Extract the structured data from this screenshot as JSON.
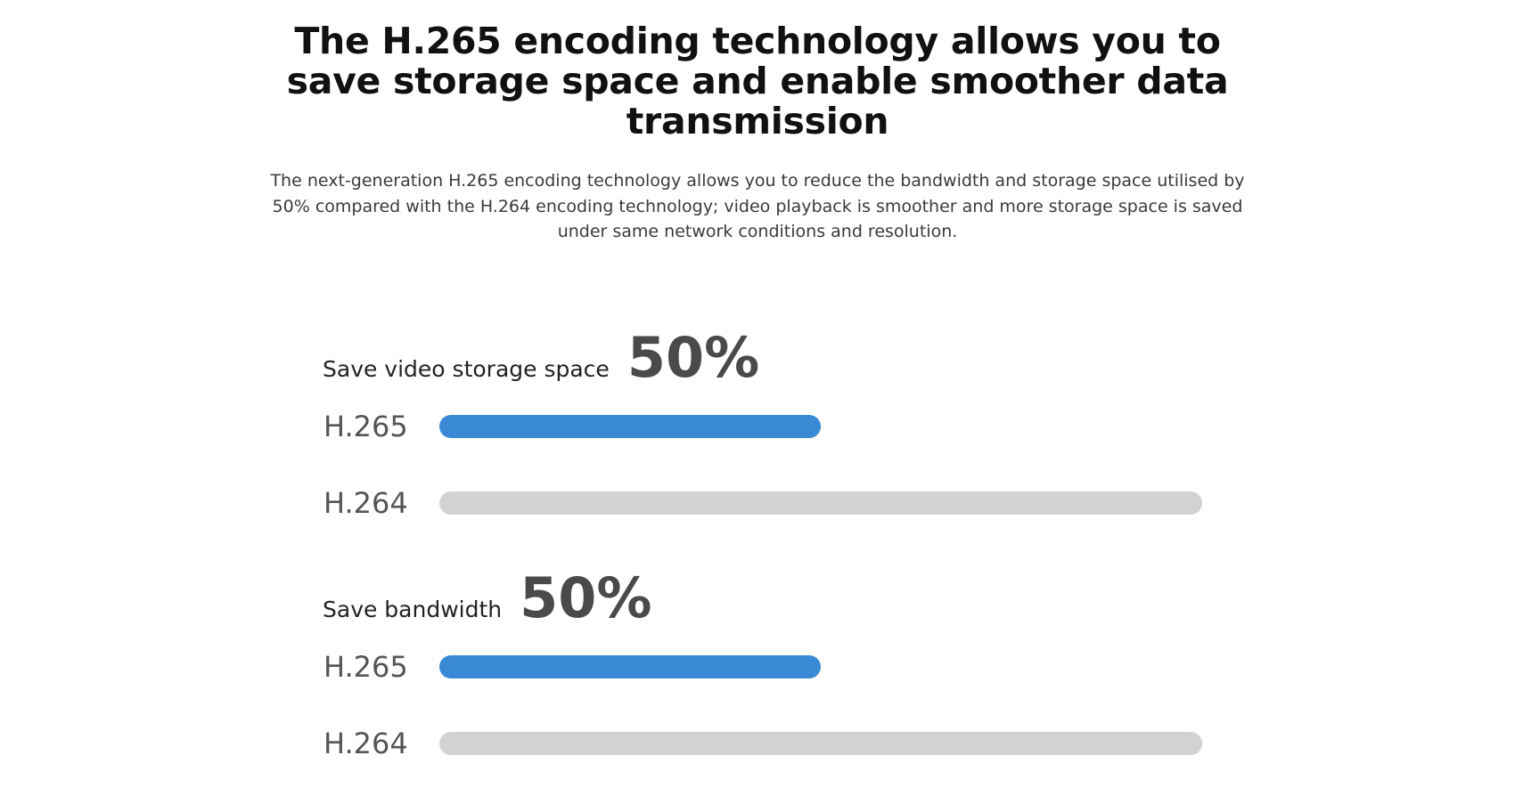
{
  "header": {
    "title": "The H.265 encoding technology allows you to save storage space and enable smoother data transmission",
    "description": "The next-generation H.265 encoding technology allows you to reduce the bandwidth and storage space utilised by 50% compared with the H.264 encoding technology; video playback is smoother and more storage space is saved under same network conditions and resolution."
  },
  "colors": {
    "h265_bar": "#3a89d5",
    "h264_bar": "#d2d2d2"
  },
  "chart_data": [
    {
      "type": "bar",
      "orientation": "horizontal",
      "title": "Save video storage space",
      "highlight": "50%",
      "categories": [
        "H.265",
        "H.264"
      ],
      "values": [
        50,
        100
      ],
      "xlim": [
        0,
        100
      ],
      "grid": false
    },
    {
      "type": "bar",
      "orientation": "horizontal",
      "title": "Save bandwidth",
      "highlight": "50%",
      "categories": [
        "H.265",
        "H.264"
      ],
      "values": [
        50,
        100
      ],
      "xlim": [
        0,
        100
      ],
      "grid": false
    }
  ]
}
